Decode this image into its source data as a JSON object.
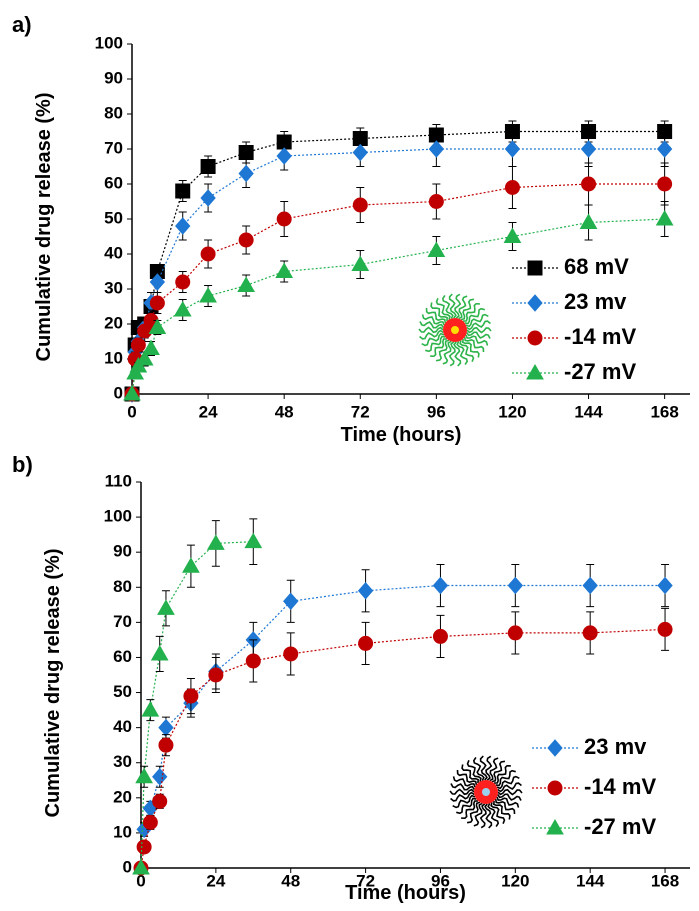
{
  "chart_data": [
    {
      "type": "line",
      "panel_label": "a)",
      "xlabel": "Time (hours)",
      "ylabel": "Cumulative drug release (%)",
      "xlim": [
        0,
        176
      ],
      "ylim": [
        0,
        100
      ],
      "xticks": [
        0,
        24,
        48,
        72,
        96,
        120,
        144,
        168
      ],
      "yticks": [
        0,
        10,
        20,
        30,
        40,
        50,
        60,
        70,
        80,
        90,
        100
      ],
      "series": [
        {
          "name": "68 mV",
          "color": "#000000",
          "marker": "square",
          "x": [
            0,
            1,
            2,
            4,
            6,
            8,
            16,
            24,
            36,
            48,
            72,
            96,
            120,
            144,
            168
          ],
          "values": [
            0,
            14,
            19,
            20,
            25,
            35,
            58,
            65,
            69,
            72,
            73,
            74,
            75,
            75,
            75
          ],
          "errors": [
            0,
            2,
            2,
            2,
            2,
            2,
            3,
            3,
            3,
            3,
            3,
            3,
            3,
            3,
            3
          ]
        },
        {
          "name": "23 mv",
          "color": "#1f77d4",
          "marker": "diamond",
          "x": [
            0,
            1,
            2,
            4,
            6,
            8,
            16,
            24,
            36,
            48,
            72,
            96,
            120,
            144,
            168
          ],
          "values": [
            0,
            12,
            15,
            19,
            26,
            32,
            48,
            56,
            63,
            68,
            69,
            70,
            70,
            70,
            70
          ],
          "errors": [
            0,
            2,
            2,
            3,
            3,
            3,
            4,
            4,
            4,
            4,
            4,
            5,
            5,
            5,
            5
          ]
        },
        {
          "name": "-14 mV",
          "color": "#c00000",
          "marker": "circle",
          "x": [
            0,
            1,
            2,
            4,
            6,
            8,
            16,
            24,
            36,
            48,
            72,
            96,
            120,
            144,
            168
          ],
          "values": [
            0,
            10,
            14,
            18,
            21,
            26,
            32,
            40,
            44,
            50,
            54,
            55,
            59,
            60,
            60
          ],
          "errors": [
            0,
            2,
            2,
            3,
            3,
            3,
            3,
            4,
            4,
            5,
            5,
            5,
            6,
            6,
            6
          ]
        },
        {
          "name": "-27 mV",
          "color": "#22b14c",
          "marker": "triangle",
          "x": [
            0,
            1,
            2,
            4,
            6,
            8,
            16,
            24,
            36,
            48,
            72,
            96,
            120,
            144,
            168
          ],
          "values": [
            0,
            6,
            8,
            10,
            13,
            19,
            24,
            28,
            31,
            35,
            37,
            41,
            45,
            49,
            50
          ],
          "errors": [
            0,
            1,
            1,
            2,
            2,
            2,
            3,
            3,
            3,
            3,
            4,
            4,
            4,
            5,
            5
          ]
        }
      ]
    },
    {
      "type": "line",
      "panel_label": "b)",
      "xlabel": "Time (hours)",
      "ylabel": "Cumulative drug release (%)",
      "xlim": [
        0,
        176
      ],
      "ylim": [
        0,
        110
      ],
      "xticks": [
        0,
        24,
        48,
        72,
        96,
        120,
        144,
        168
      ],
      "yticks": [
        0,
        10,
        20,
        30,
        40,
        50,
        60,
        70,
        80,
        90,
        100,
        110
      ],
      "series": [
        {
          "name": "23 mv",
          "color": "#1f77d4",
          "marker": "diamond",
          "x": [
            1,
            3,
            6,
            8,
            16,
            24,
            36,
            48,
            72,
            96,
            120,
            144,
            168
          ],
          "values": [
            11,
            17,
            26,
            40,
            47,
            56,
            65,
            76,
            79,
            80.5,
            80.5,
            80.5,
            80.5
          ],
          "errors": [
            2,
            2,
            3,
            3,
            4,
            5,
            5,
            6,
            6,
            6,
            6,
            6,
            6
          ]
        },
        {
          "name": "-14 mV",
          "color": "#c00000",
          "marker": "circle",
          "x": [
            0,
            1,
            3,
            6,
            8,
            16,
            24,
            36,
            48,
            72,
            96,
            120,
            144,
            168
          ],
          "values": [
            0,
            6,
            13,
            19,
            35,
            49,
            55,
            59,
            61,
            64,
            66,
            67,
            67,
            68
          ],
          "errors": [
            0,
            1,
            2,
            2,
            3,
            5,
            5,
            6,
            6,
            6,
            6,
            6,
            6,
            6
          ]
        },
        {
          "name": "-27 mV",
          "color": "#22b14c",
          "marker": "triangle",
          "x": [
            0,
            1,
            3,
            6,
            8,
            16,
            24,
            36
          ],
          "values": [
            0,
            26,
            45,
            61,
            74,
            86,
            92.5,
            93
          ],
          "errors": [
            0,
            3,
            3,
            5,
            5,
            6,
            6.5,
            6.5
          ]
        }
      ]
    }
  ]
}
